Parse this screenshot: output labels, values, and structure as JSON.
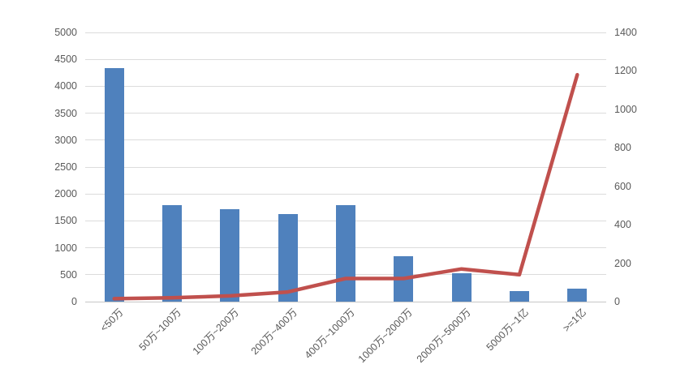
{
  "chart_data": {
    "type": "combo",
    "title": "",
    "legend": "none",
    "grid": true,
    "categories": [
      "<50万",
      "50万~100万",
      "100万~200万",
      "200万~400万",
      "400万~1000万",
      "1000万~2000万",
      "2000万~5000万",
      "5000万~1亿",
      ">=1亿"
    ],
    "series": [
      {
        "type": "bar",
        "axis": "left",
        "values": [
          4330,
          1790,
          1720,
          1630,
          1790,
          840,
          530,
          190,
          240
        ]
      },
      {
        "type": "line",
        "axis": "right",
        "values": [
          15,
          20,
          30,
          50,
          120,
          120,
          170,
          140,
          1180
        ]
      }
    ],
    "left_axis": {
      "min": 0,
      "max": 5000,
      "step": 500,
      "ticks": [
        0,
        500,
        1000,
        1500,
        2000,
        2500,
        3000,
        3500,
        4000,
        4500,
        5000
      ]
    },
    "right_axis": {
      "min": 0,
      "max": 1400,
      "step": 200,
      "ticks": [
        0,
        200,
        400,
        600,
        800,
        1000,
        1200,
        1400
      ]
    }
  },
  "colors": {
    "bar": "#4F81BD",
    "line": "#C0504D",
    "gridline": "#DCDCDC",
    "axis_line": "#C6C6C6",
    "axis_text": "#595959"
  }
}
